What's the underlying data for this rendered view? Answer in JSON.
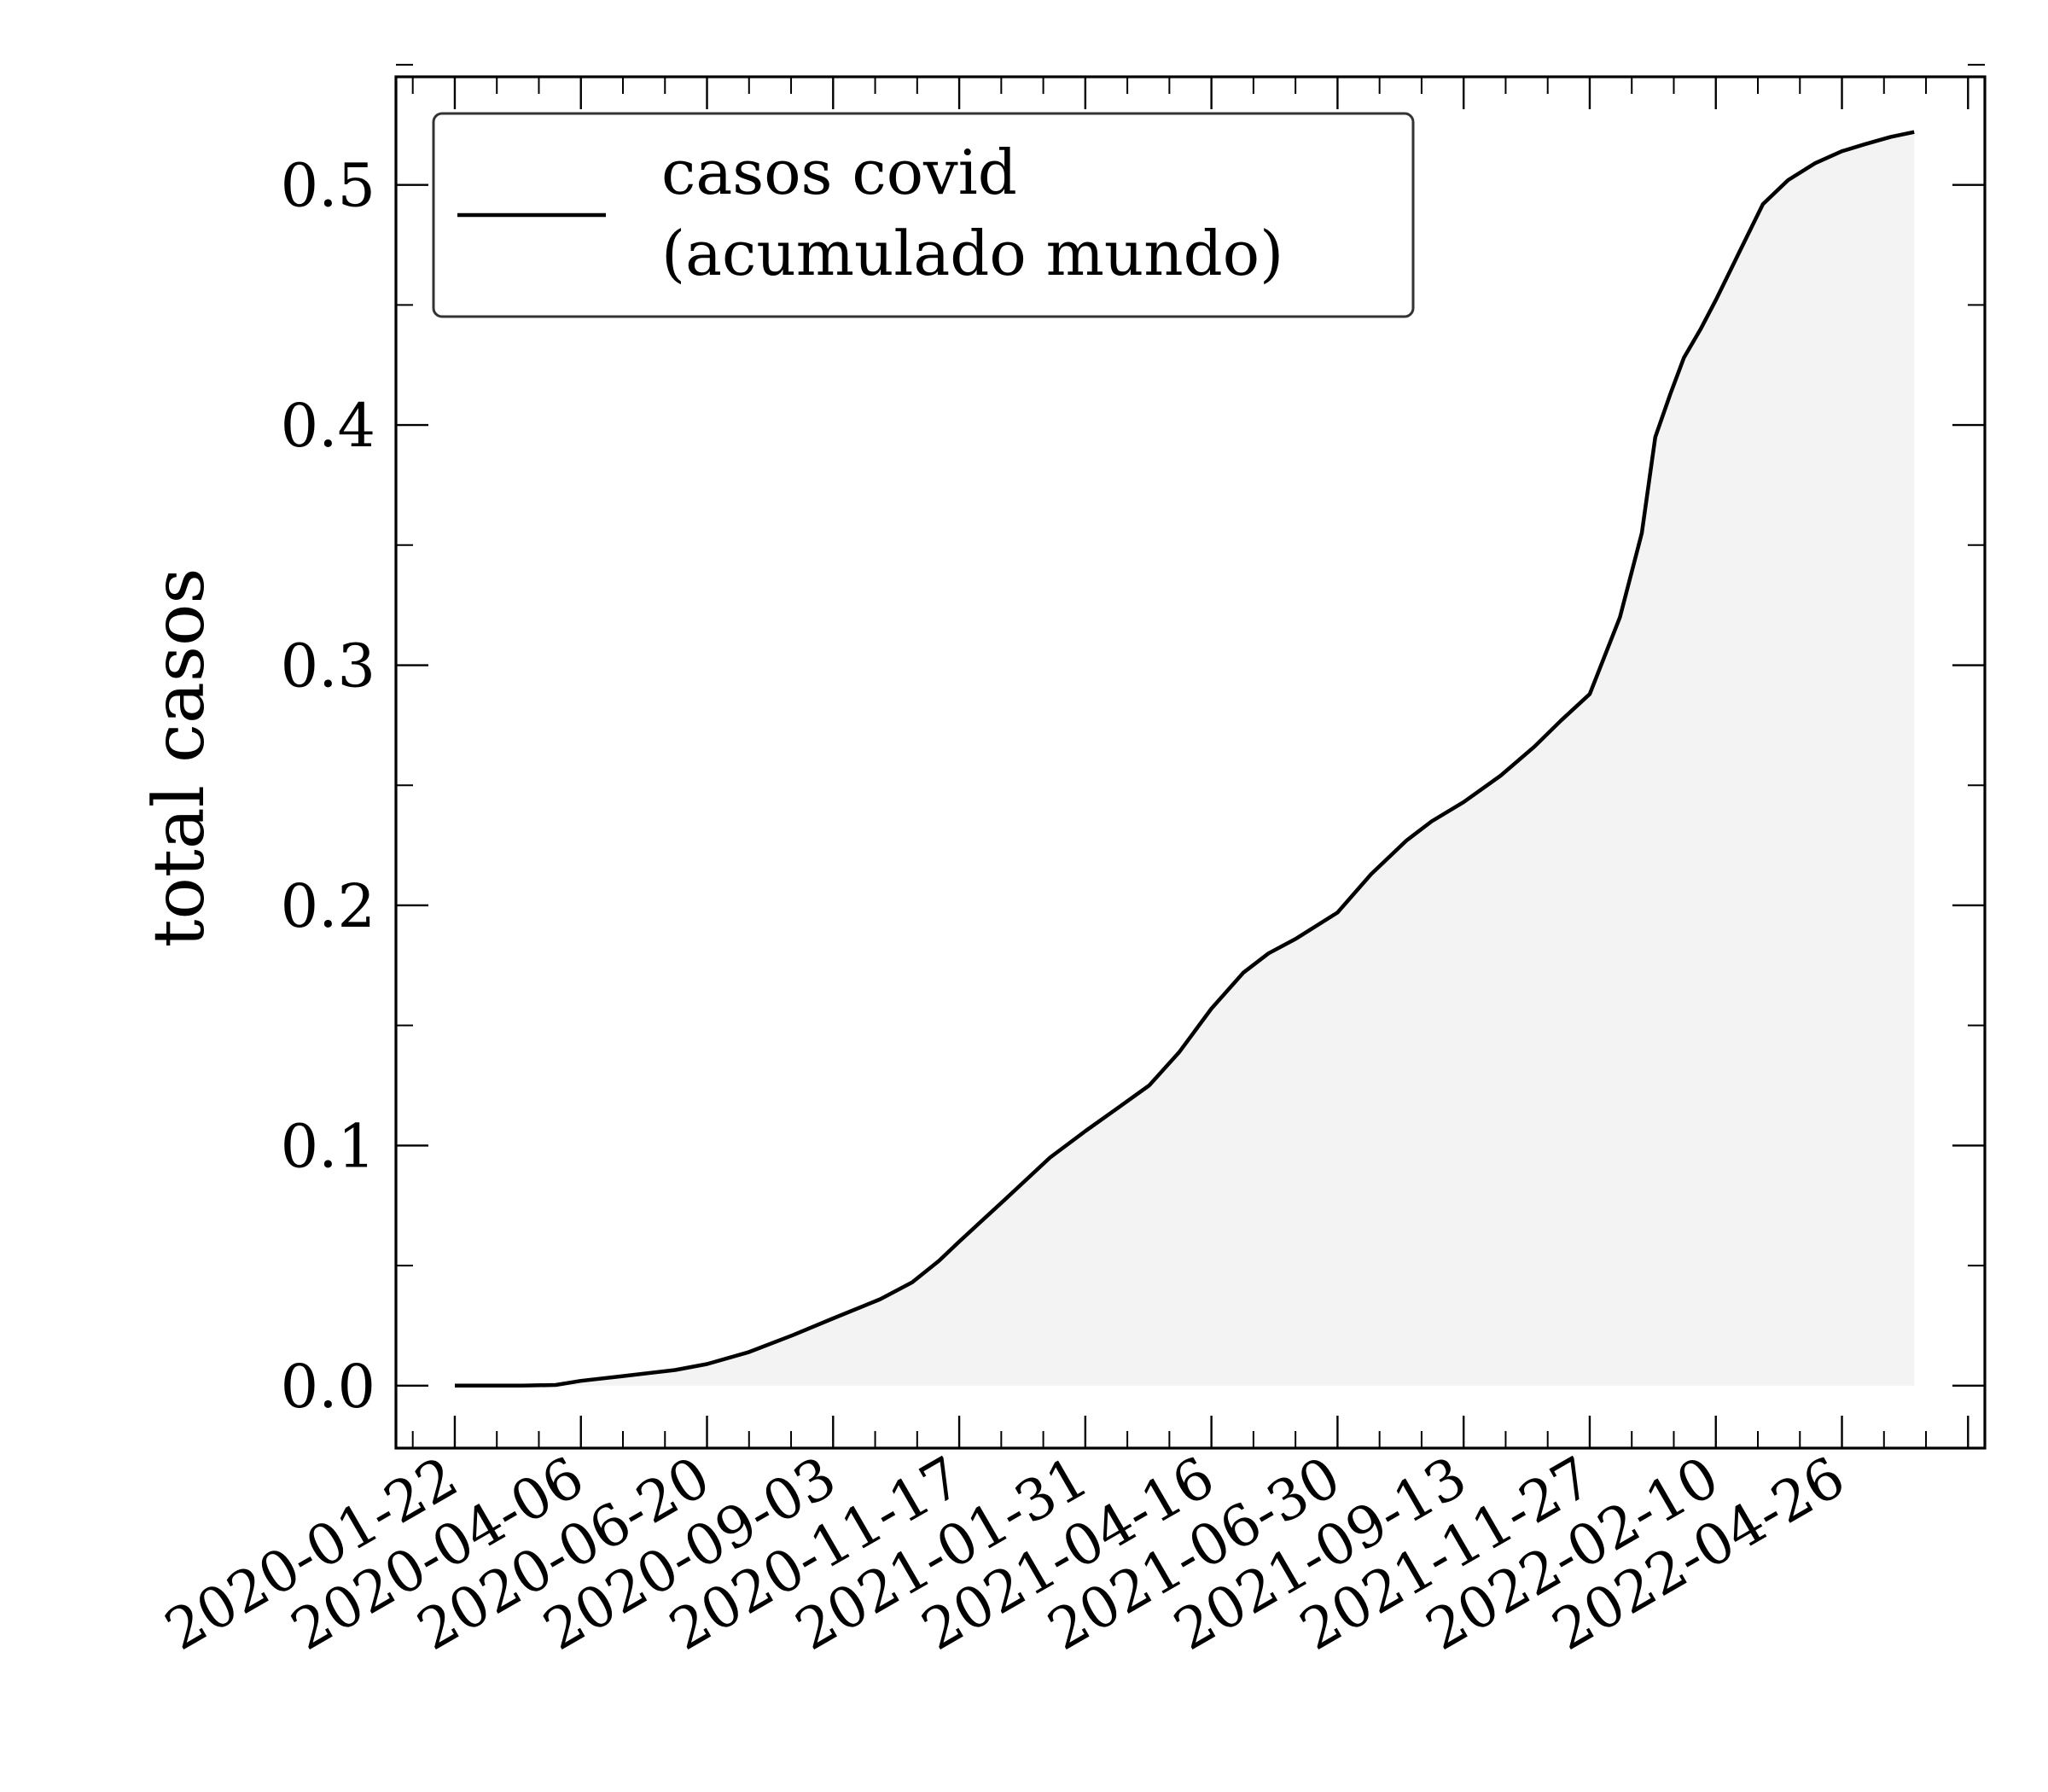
{
  "chart_data": {
    "type": "area",
    "title": "",
    "xlabel": "",
    "ylabel": "total casos",
    "ylim": [
      -0.026,
      0.545
    ],
    "yticks": [
      0.0,
      0.1,
      0.2,
      0.3,
      0.4,
      0.5
    ],
    "ytick_labels": [
      "0.0",
      "0.1",
      "0.2",
      "0.3",
      "0.4",
      "0.5"
    ],
    "xlim": [
      "2019-12-18",
      "2022-07-20"
    ],
    "xticks": [
      "2020-01-22",
      "2020-04-06",
      "2020-06-20",
      "2020-09-03",
      "2020-11-17",
      "2021-01-31",
      "2021-04-16",
      "2021-06-30",
      "2021-09-13",
      "2021-11-27",
      "2022-02-10",
      "2022-04-26"
    ],
    "grid": false,
    "legend_position": "top-left",
    "colors": {
      "line": "#000000",
      "fill": "#f3f3f3"
    },
    "series": [
      {
        "name": "casos covid\n(acumulado mundo)",
        "x": [
          "2020-01-22",
          "2020-03-02",
          "2020-03-22",
          "2020-04-06",
          "2020-05-01",
          "2020-06-01",
          "2020-06-20",
          "2020-07-15",
          "2020-08-10",
          "2020-09-03",
          "2020-10-01",
          "2020-10-20",
          "2020-11-05",
          "2020-11-17",
          "2020-12-15",
          "2021-01-10",
          "2021-01-31",
          "2021-02-20",
          "2021-03-10",
          "2021-03-28",
          "2021-04-16",
          "2021-05-05",
          "2021-05-20",
          "2021-06-05",
          "2021-06-30",
          "2021-07-20",
          "2021-08-10",
          "2021-08-25",
          "2021-09-13",
          "2021-10-05",
          "2021-10-25",
          "2021-11-10",
          "2021-11-27",
          "2021-12-15",
          "2021-12-28",
          "2022-01-05",
          "2022-01-14",
          "2022-01-22",
          "2022-02-01",
          "2022-02-10",
          "2022-02-24",
          "2022-03-10",
          "2022-03-25",
          "2022-04-10",
          "2022-04-26",
          "2022-05-10",
          "2022-05-25",
          "2022-06-08"
        ],
        "values": [
          0.0,
          0.0,
          0.0003,
          0.002,
          0.004,
          0.0065,
          0.009,
          0.014,
          0.021,
          0.028,
          0.036,
          0.043,
          0.052,
          0.06,
          0.078,
          0.095,
          0.106,
          0.116,
          0.125,
          0.139,
          0.157,
          0.172,
          0.18,
          0.186,
          0.197,
          0.213,
          0.227,
          0.235,
          0.243,
          0.254,
          0.266,
          0.277,
          0.288,
          0.32,
          0.355,
          0.395,
          0.413,
          0.428,
          0.44,
          0.452,
          0.472,
          0.492,
          0.502,
          0.509,
          0.514,
          0.517,
          0.52,
          0.522
        ]
      }
    ]
  }
}
